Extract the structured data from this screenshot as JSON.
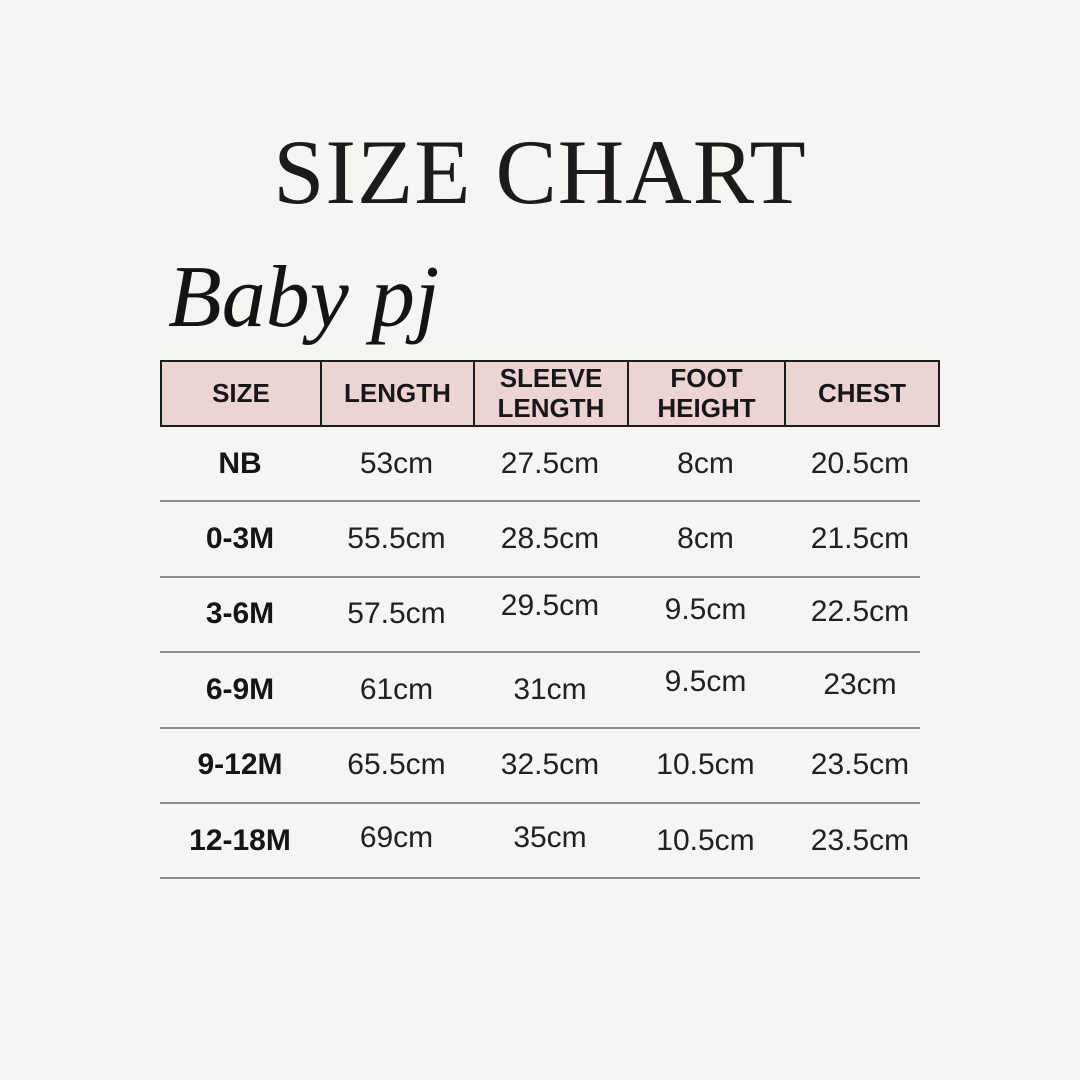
{
  "chart_data": {
    "type": "table",
    "title": "SIZE CHART",
    "subtitle": "Baby pj",
    "units": "cm",
    "columns": [
      "SIZE",
      "LENGTH",
      "SLEEVE LENGTH",
      "FOOT HEIGHT",
      "CHEST"
    ],
    "rows": [
      [
        "NB",
        "53cm",
        "27.5cm",
        "8cm",
        "20.5cm"
      ],
      [
        "0-3M",
        "55.5cm",
        "28.5cm",
        "8cm",
        "21.5cm"
      ],
      [
        "3-6M",
        "57.5cm",
        "29.5cm",
        "9.5cm",
        "22.5cm"
      ],
      [
        "6-9M",
        "61cm",
        "31cm",
        "9.5cm",
        "23cm"
      ],
      [
        "9-12M",
        "65.5cm",
        "32.5cm",
        "10.5cm",
        "23.5cm"
      ],
      [
        "12-18M",
        "69cm",
        "35cm",
        "10.5cm",
        "23.5cm"
      ]
    ]
  },
  "colors": {
    "background": "#f7f5f1",
    "header_background": "#ecd4d3",
    "header_border": "#1c1c1c",
    "row_divider": "#8e8c89",
    "text": "#1d1b1a"
  }
}
